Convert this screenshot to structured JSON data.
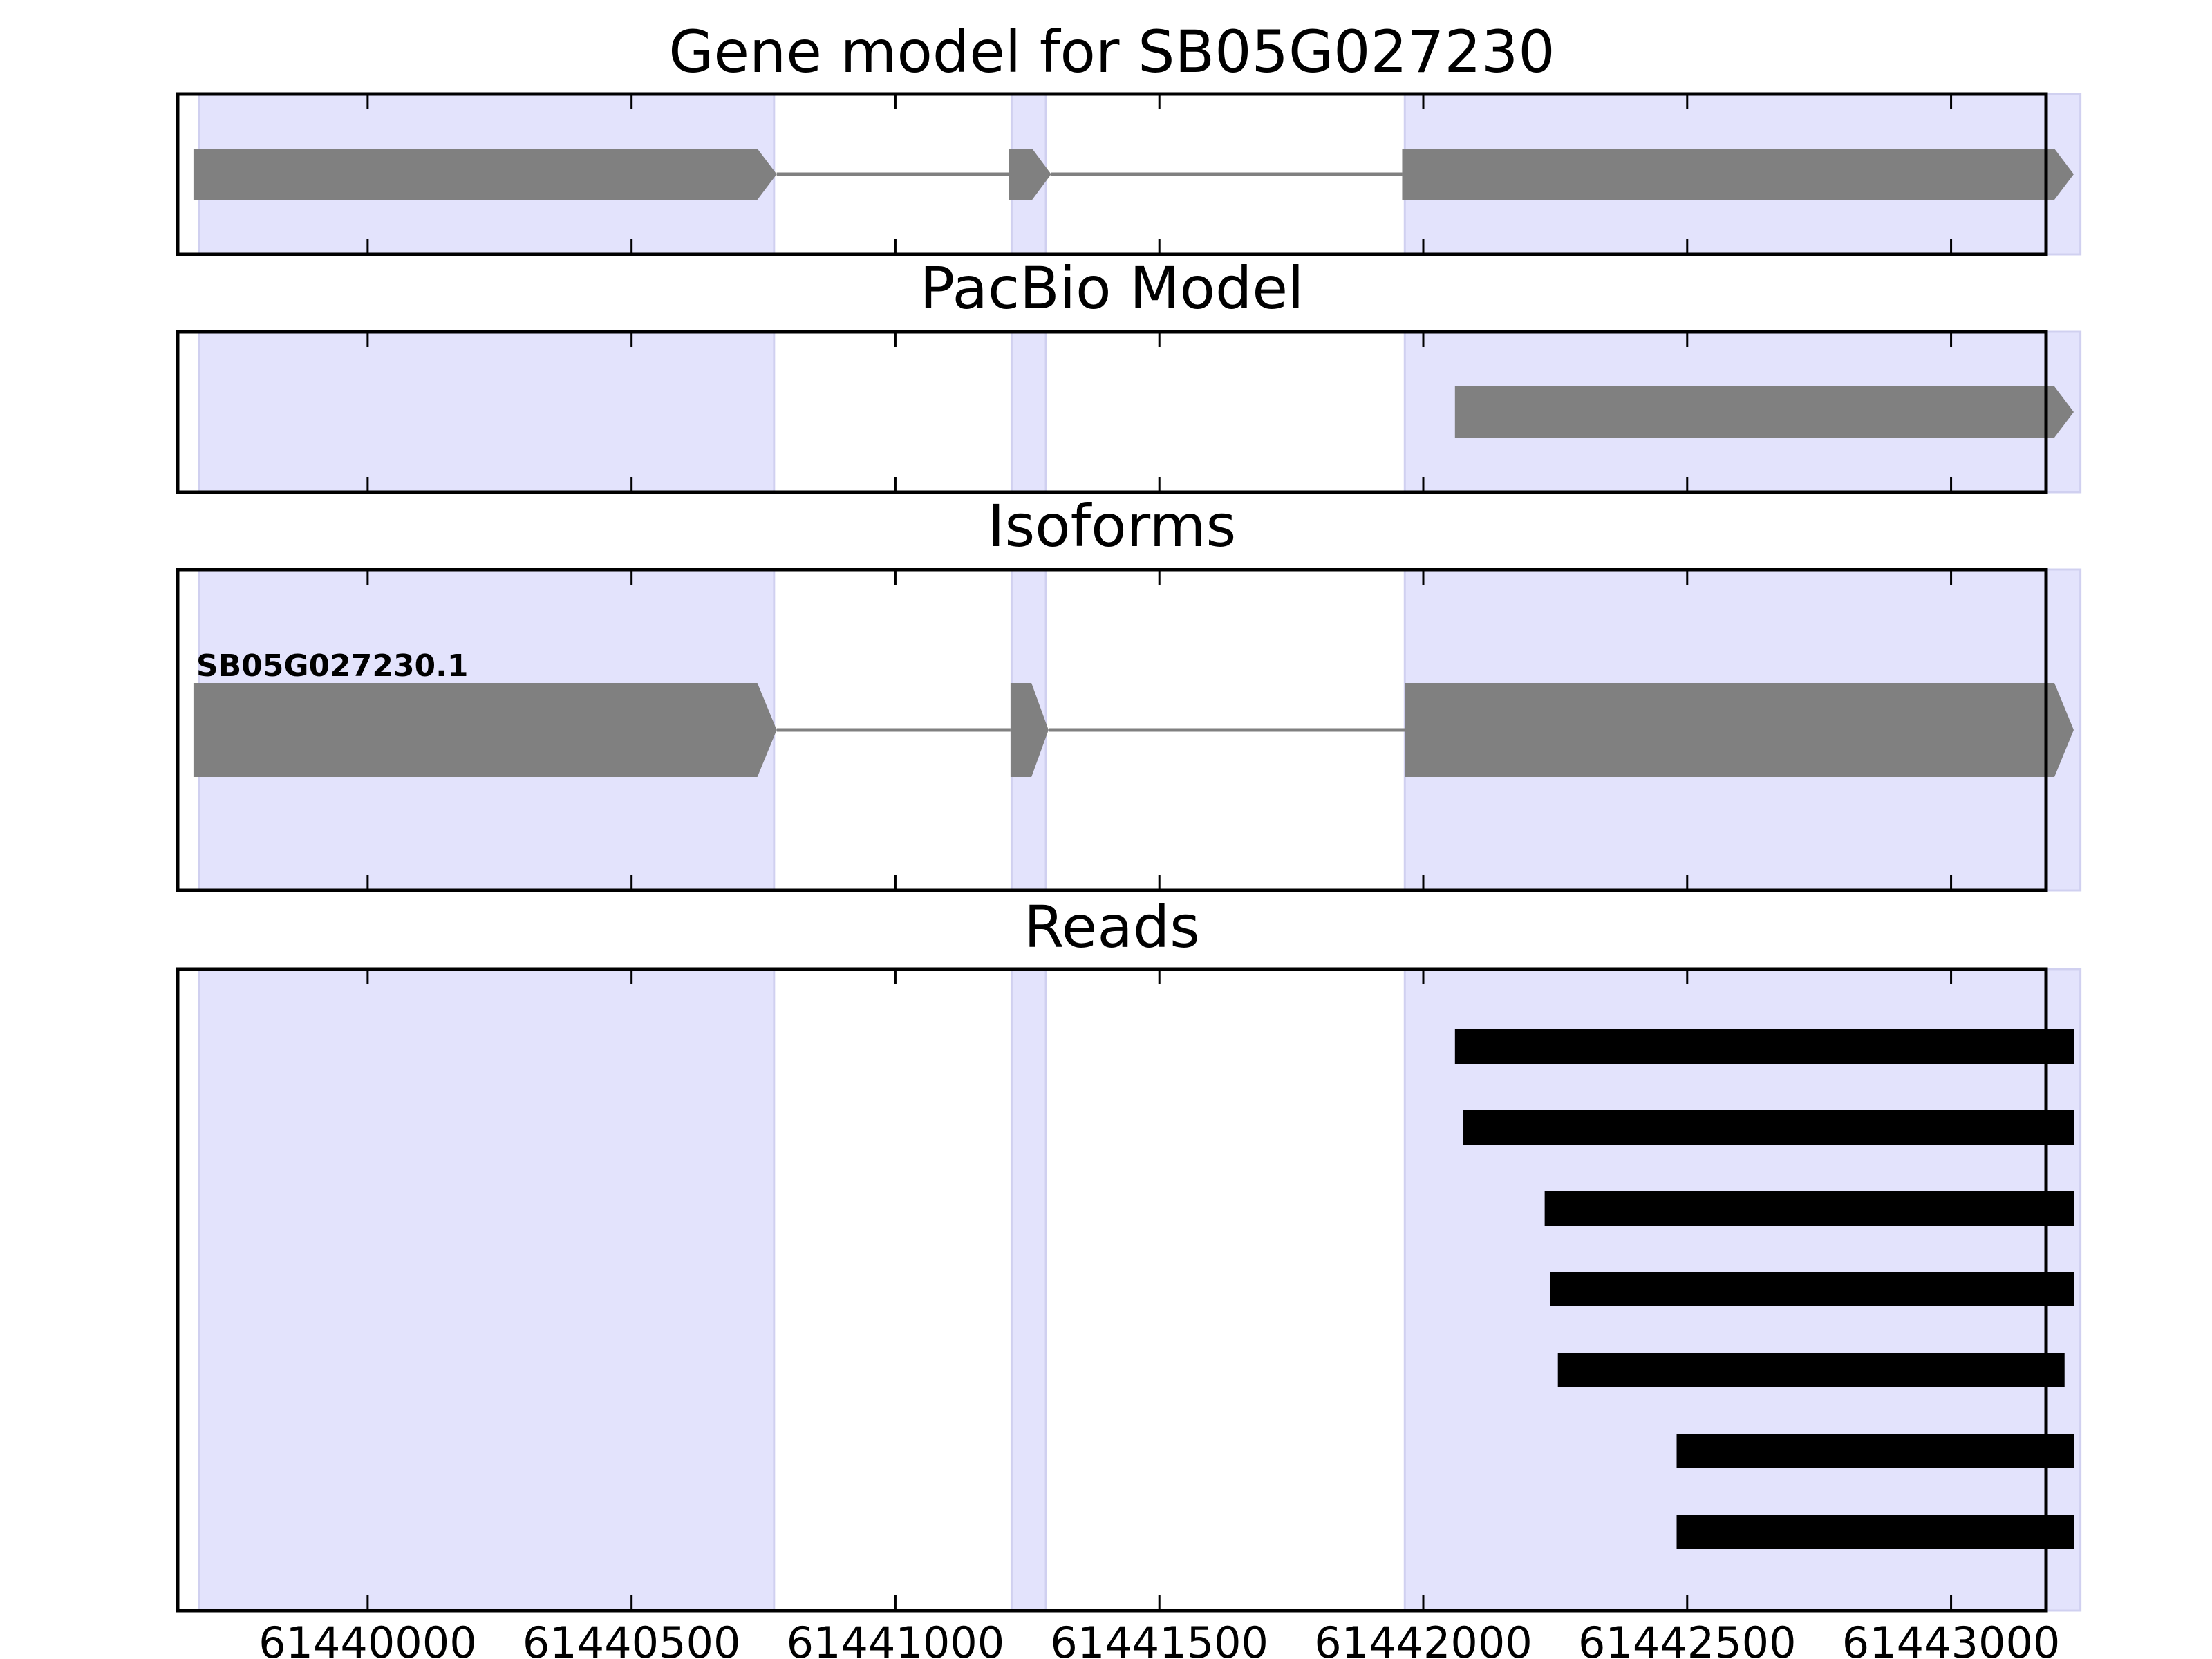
{
  "figure_title": "Gene model for SB05G027230",
  "colors": {
    "exon_shade": "#e3e3fc",
    "exon_shade_edge": "#d0d0f0",
    "feature": "#808080",
    "read": "#000000",
    "axis": "#000000"
  },
  "chart_data": {
    "type": "gene-track",
    "x_axis": {
      "xlim": [
        61439640,
        61443180
      ],
      "ticks": [
        61440000,
        61440500,
        61441000,
        61441500,
        61442000,
        61442500,
        61443000
      ],
      "tick_labels": [
        "61440000",
        "61440500",
        "61441000",
        "61441500",
        "61442000",
        "61442500",
        "61443000"
      ]
    },
    "exon_regions": [
      {
        "start": 61439680,
        "end": 61440770
      },
      {
        "start": 61441220,
        "end": 61441285
      },
      {
        "start": 61441965,
        "end": 61443245
      }
    ],
    "panels": [
      {
        "title": "Gene model for SB05G027230",
        "kind": "gene",
        "features": [
          {
            "label": "",
            "strand": "+",
            "exons": [
              {
                "start": 61439670,
                "end": 61440775
              },
              {
                "start": 61441215,
                "end": 61441295
              },
              {
                "start": 61441960,
                "end": 61443255
              }
            ]
          }
        ]
      },
      {
        "title": "PacBio Model",
        "kind": "gene",
        "features": [
          {
            "label": "",
            "strand": "+",
            "exons": [
              {
                "start": 61442060,
                "end": 61443300
              }
            ]
          }
        ]
      },
      {
        "title": "Isoforms",
        "kind": "gene",
        "features": [
          {
            "label": "SB05G027230.1",
            "strand": "+",
            "exons": [
              {
                "start": 61439670,
                "end": 61440775
              },
              {
                "start": 61441218,
                "end": 61441290
              },
              {
                "start": 61441965,
                "end": 61443250
              }
            ]
          }
        ]
      },
      {
        "title": "Reads",
        "kind": "reads",
        "reads": [
          {
            "start": 61442060,
            "end": 61443280
          },
          {
            "start": 61442075,
            "end": 61443280
          },
          {
            "start": 61442230,
            "end": 61443280
          },
          {
            "start": 61442240,
            "end": 61443295
          },
          {
            "start": 61442255,
            "end": 61443215
          },
          {
            "start": 61442480,
            "end": 61443280
          },
          {
            "start": 61442480,
            "end": 61443280
          }
        ]
      }
    ]
  }
}
